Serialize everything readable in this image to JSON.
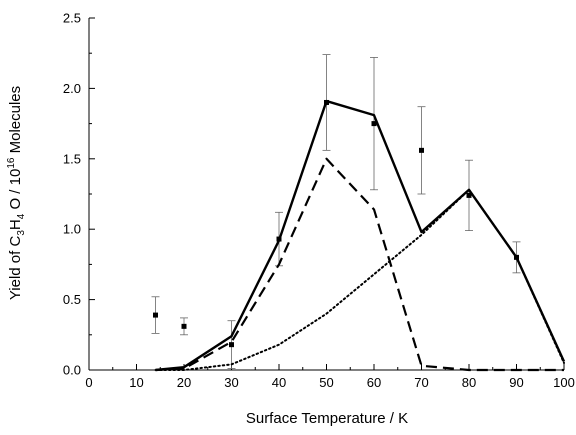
{
  "chart_data": {
    "type": "line",
    "xlabel": "Surface Temperature / K",
    "ylabel": {
      "prefix": "Yield of C",
      "sub1": "3",
      "mid1": "H",
      "sub2": "4",
      "mid2": " O / 10",
      "sup": "16",
      "suffix": " Molecules"
    },
    "xlim": [
      0,
      100
    ],
    "ylim": [
      0,
      2.5
    ],
    "x_ticks": [
      "0",
      "10",
      "20",
      "30",
      "40",
      "50",
      "60",
      "70",
      "80",
      "90",
      "100"
    ],
    "y_ticks": [
      "0.0",
      "0.5",
      "1.0",
      "1.5",
      "2.0",
      "2.5"
    ],
    "grid": false,
    "legend": "none",
    "series": [
      {
        "style": "points-with-error-bars",
        "x": [
          14,
          20,
          30,
          40,
          50,
          60,
          70,
          80,
          90
        ],
        "y": [
          0.39,
          0.31,
          0.18,
          0.93,
          1.9,
          1.75,
          1.56,
          1.24,
          0.8
        ],
        "err": [
          0.13,
          0.06,
          0.17,
          0.19,
          0.34,
          0.47,
          0.31,
          0.25,
          0.11
        ]
      },
      {
        "style": "solid",
        "x": [
          14,
          20,
          30,
          40,
          50,
          60,
          70,
          80,
          90,
          100
        ],
        "y": [
          0.0,
          0.02,
          0.24,
          0.92,
          1.91,
          1.81,
          0.98,
          1.28,
          0.8,
          0.06
        ]
      },
      {
        "style": "dashed",
        "x": [
          14,
          20,
          30,
          40,
          50,
          60,
          70,
          80,
          90,
          100
        ],
        "y": [
          0.0,
          0.01,
          0.2,
          0.75,
          1.5,
          1.14,
          0.03,
          0.0,
          0.0,
          0.0
        ]
      },
      {
        "style": "dotted",
        "x": [
          14,
          20,
          30,
          40,
          50,
          60,
          70,
          80,
          90,
          100
        ],
        "y": [
          0.0,
          0.0,
          0.04,
          0.18,
          0.4,
          0.68,
          0.96,
          1.28,
          0.8,
          0.05
        ]
      }
    ]
  }
}
